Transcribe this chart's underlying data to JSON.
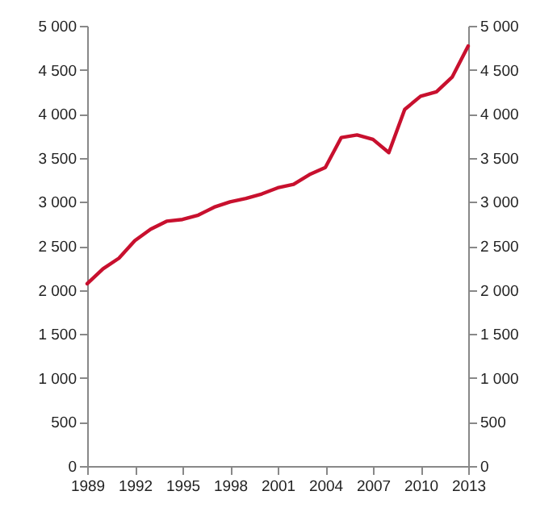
{
  "chart_data": {
    "type": "line",
    "x": [
      1989,
      1990,
      1991,
      1992,
      1993,
      1994,
      1995,
      1996,
      1997,
      1998,
      1999,
      2000,
      2001,
      2002,
      2003,
      2004,
      2005,
      2006,
      2007,
      2008,
      2009,
      2010,
      2011,
      2012,
      2013
    ],
    "series": [
      {
        "color": "#c8102e",
        "values": [
          2070,
          2240,
          2360,
          2560,
          2690,
          2780,
          2800,
          2850,
          2940,
          3000,
          3040,
          3090,
          3160,
          3200,
          3310,
          3390,
          3730,
          3760,
          3710,
          3560,
          4050,
          4200,
          4250,
          4420,
          4770
        ]
      }
    ],
    "xlim": [
      1989,
      2013
    ],
    "xticks": [
      1989,
      1992,
      1995,
      1998,
      2001,
      2004,
      2007,
      2010,
      2013
    ],
    "ylim": [
      0,
      5000
    ],
    "yticks": [
      0,
      500,
      {
        "value": 1000,
        "label": "1 000"
      },
      {
        "value": 1500,
        "label": "1 500"
      },
      {
        "value": 2000,
        "label": "2 000"
      },
      {
        "value": 2500,
        "label": "2 500"
      },
      {
        "value": 3000,
        "label": "3 000"
      },
      {
        "value": 3500,
        "label": "3 500"
      },
      {
        "value": 4000,
        "label": "4 000"
      },
      {
        "value": 4500,
        "label": "4 500"
      },
      {
        "value": 5000,
        "label": "5 000"
      }
    ],
    "y2lim": [
      0,
      5000
    ],
    "y2ticks": [
      0,
      500,
      {
        "value": 1000,
        "label": "1 000"
      },
      {
        "value": 1500,
        "label": "1 500"
      },
      {
        "value": 2000,
        "label": "2 000"
      },
      {
        "value": 2500,
        "label": "2 500"
      },
      {
        "value": 3000,
        "label": "3 000"
      },
      {
        "value": 3500,
        "label": "3 500"
      },
      {
        "value": 4000,
        "label": "4 000"
      },
      {
        "value": 4500,
        "label": "4 500"
      },
      {
        "value": 5000,
        "label": "5 000"
      }
    ],
    "grid": false
  }
}
